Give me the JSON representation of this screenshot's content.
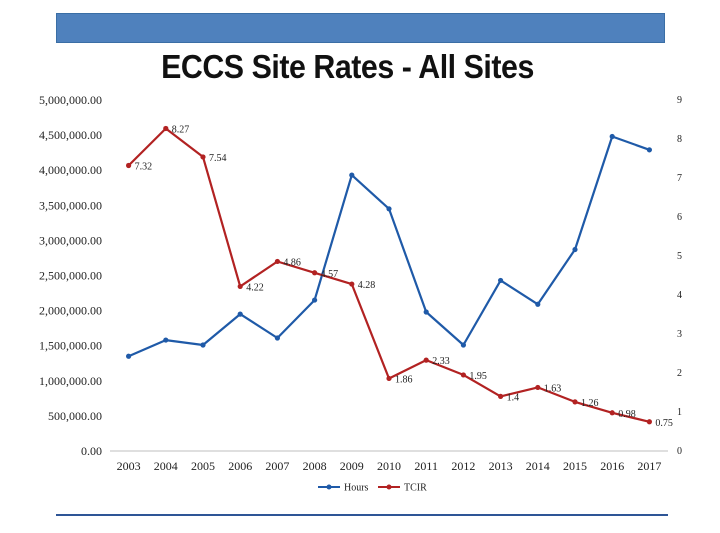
{
  "header": {
    "title": "ECCS Site Rates - All Sites"
  },
  "chart_data": {
    "type": "line",
    "title": "ECCS Site Rates - All Sites",
    "categories": [
      "2003",
      "2004",
      "2005",
      "2006",
      "2007",
      "2008",
      "2009",
      "2010",
      "2011",
      "2012",
      "2013",
      "2014",
      "2015",
      "2016",
      "2017"
    ],
    "y_left": {
      "min": 0,
      "max": 5000000,
      "ticks": [
        "0.00",
        "500,000.00",
        "1,000,000.00",
        "1,500,000.00",
        "2,000,000.00",
        "2,500,000.00",
        "3,000,000.00",
        "3,500,000.00",
        "4,000,000.00",
        "4,500,000.00",
        "5,000,000.00"
      ]
    },
    "y_right": {
      "min": 0,
      "max": 9,
      "ticks": [
        "0",
        "1",
        "2",
        "3",
        "4",
        "5",
        "6",
        "7",
        "8",
        "9"
      ]
    },
    "series": [
      {
        "name": "Hours",
        "axis": "left",
        "color": "#1f5aa8",
        "values": [
          1350000,
          1580000,
          1510000,
          1950000,
          1610000,
          2150000,
          3930000,
          3450000,
          1980000,
          1510000,
          2430000,
          2090000,
          2870000,
          4480000,
          4290000
        ],
        "labels": []
      },
      {
        "name": "TCIR",
        "axis": "right",
        "color": "#b22222",
        "values": [
          7.32,
          8.27,
          7.54,
          4.22,
          4.86,
          4.57,
          4.28,
          1.86,
          2.33,
          1.95,
          1.4,
          1.63,
          1.26,
          0.98,
          0.75
        ],
        "labels": [
          "7.32",
          "8.27",
          "7.54",
          "4.22",
          "4.86",
          "4.57",
          "4.28",
          "1.86",
          "2.33",
          "1.95",
          "1.4",
          "1.63",
          "1.26",
          "0.98",
          "0.75"
        ]
      }
    ],
    "legend": {
      "position": "bottom"
    },
    "grid": false
  }
}
